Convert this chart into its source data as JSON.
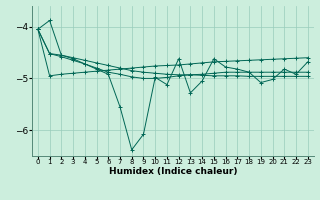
{
  "xlabel": "Humidex (Indice chaleur)",
  "bg_color": "#cceedd",
  "grid_color": "#99ccbb",
  "line_color": "#006655",
  "xlim": [
    -0.5,
    23.5
  ],
  "ylim": [
    -6.5,
    -3.6
  ],
  "yticks": [
    -6,
    -5,
    -4
  ],
  "xticks": [
    0,
    1,
    2,
    3,
    4,
    5,
    6,
    7,
    8,
    9,
    10,
    11,
    12,
    13,
    14,
    15,
    16,
    17,
    18,
    19,
    20,
    21,
    22,
    23
  ],
  "lines": [
    [
      -4.05,
      -3.88,
      -4.55,
      -4.62,
      -4.72,
      -4.82,
      -4.92,
      -5.55,
      -6.38,
      -6.08,
      -4.98,
      -5.12,
      -4.62,
      -5.28,
      -5.05,
      -4.62,
      -4.78,
      -4.82,
      -4.88,
      -5.08,
      -5.02,
      -4.82,
      -4.92,
      -4.68
    ],
    [
      -4.05,
      -4.52,
      -4.58,
      -4.65,
      -4.72,
      -4.8,
      -4.88,
      -4.92,
      -4.97,
      -5.0,
      -5.0,
      -4.98,
      -4.95,
      -4.93,
      -4.92,
      -4.9,
      -4.88,
      -4.88,
      -4.88,
      -4.88,
      -4.88,
      -4.88,
      -4.88,
      -4.88
    ],
    [
      -4.05,
      -4.95,
      -4.92,
      -4.9,
      -4.88,
      -4.86,
      -4.84,
      -4.82,
      -4.8,
      -4.78,
      -4.76,
      -4.75,
      -4.74,
      -4.72,
      -4.7,
      -4.68,
      -4.67,
      -4.66,
      -4.65,
      -4.64,
      -4.63,
      -4.62,
      -4.61,
      -4.6
    ],
    [
      -4.05,
      -4.52,
      -4.55,
      -4.6,
      -4.65,
      -4.7,
      -4.75,
      -4.8,
      -4.85,
      -4.88,
      -4.9,
      -4.92,
      -4.93,
      -4.93,
      -4.94,
      -4.95,
      -4.95,
      -4.95,
      -4.96,
      -4.96,
      -4.96,
      -4.96,
      -4.96,
      -4.96
    ]
  ]
}
